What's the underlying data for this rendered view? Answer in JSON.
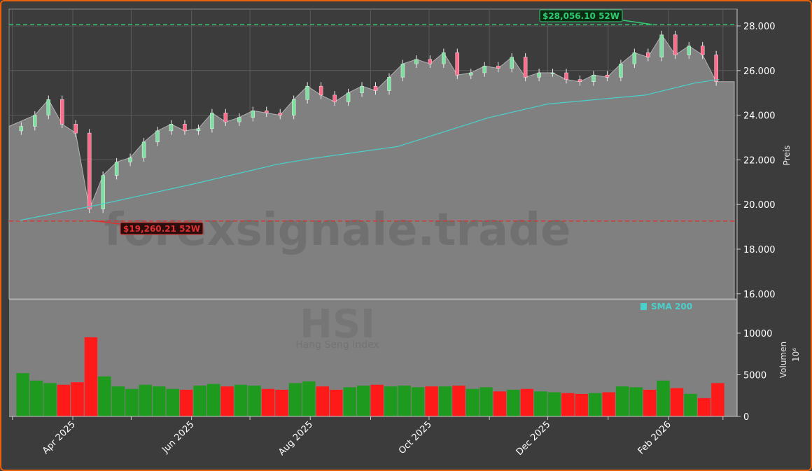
{
  "chart_data": {
    "type": "candlestick-area",
    "symbol": "HSI",
    "symbol_name": "Hang Seng Index",
    "watermark": "forexsignale.trade",
    "ylabel": "Preis",
    "ylim": [
      16000,
      28700
    ],
    "yticks": [
      16000,
      18000,
      20000,
      22000,
      24000,
      26000,
      28000
    ],
    "ytick_labels": [
      "16.000",
      "18.000",
      "20.000",
      "22.000",
      "24.000",
      "26.000",
      "28.000"
    ],
    "volume_label": "Volumen",
    "volume_unit": "10⁶",
    "volume_ylim": [
      0,
      13500
    ],
    "volume_ticks": [
      0,
      5000,
      10000
    ],
    "volume_tick_labels": [
      "0",
      "5000",
      "10000"
    ],
    "xtick_labels": [
      {
        "date": "2025-04-01",
        "label": "Apr 2025"
      },
      {
        "date": "2025-06-01",
        "label": "Jun 2025"
      },
      {
        "date": "2025-08-01",
        "label": "Aug 2025"
      },
      {
        "date": "2025-10-01",
        "label": "Oct 2025"
      },
      {
        "date": "2025-12-01",
        "label": "Dec 2025"
      },
      {
        "date": "2026-02-01",
        "label": "Feb 2026"
      }
    ],
    "minor_xticks": [
      "2025-03-01",
      "2025-05-01",
      "2025-07-01",
      "2025-09-01",
      "2025-11-01",
      "2026-01-01",
      "2026-03-01"
    ],
    "legend": {
      "label": "SMA 200",
      "placement": "upper-right of volume panel"
    },
    "high_52w": {
      "value": 28056.1,
      "label": "$28,056.10 52W",
      "date": "2026-01-28",
      "color": "#2ecc71"
    },
    "low_52w": {
      "value": 19260.21,
      "label": "$19,260.21 52W",
      "date": "2025-04-08",
      "color": "#e03030"
    },
    "weekly": {
      "dates": [
        "2025-03-03",
        "2025-03-10",
        "2025-03-17",
        "2025-03-24",
        "2025-03-31",
        "2025-04-07",
        "2025-04-14",
        "2025-04-21",
        "2025-04-28",
        "2025-05-05",
        "2025-05-12",
        "2025-05-19",
        "2025-05-26",
        "2025-06-02",
        "2025-06-09",
        "2025-06-16",
        "2025-06-23",
        "2025-06-30",
        "2025-07-07",
        "2025-07-14",
        "2025-07-21",
        "2025-07-28",
        "2025-08-04",
        "2025-08-11",
        "2025-08-18",
        "2025-08-25",
        "2025-09-01",
        "2025-09-08",
        "2025-09-15",
        "2025-09-22",
        "2025-09-29",
        "2025-10-06",
        "2025-10-13",
        "2025-10-20",
        "2025-10-27",
        "2025-11-03",
        "2025-11-10",
        "2025-11-17",
        "2025-11-24",
        "2025-12-01",
        "2025-12-08",
        "2025-12-15",
        "2025-12-22",
        "2025-12-29",
        "2026-01-05",
        "2026-01-12",
        "2026-01-19",
        "2026-01-26",
        "2026-02-02",
        "2026-02-09",
        "2026-02-16",
        "2026-02-23"
      ],
      "close": [
        23500,
        24000,
        24700,
        23600,
        23200,
        19800,
        21300,
        21900,
        22100,
        22800,
        23300,
        23600,
        23300,
        23400,
        24100,
        23700,
        23900,
        24200,
        24100,
        24000,
        24700,
        25300,
        24900,
        24600,
        25000,
        25300,
        25100,
        25700,
        26300,
        26500,
        26300,
        26800,
        25800,
        25900,
        26200,
        26100,
        26600,
        25700,
        25900,
        25900,
        25600,
        25500,
        25800,
        25700,
        26300,
        26800,
        26600,
        27600,
        26700,
        27100,
        26700,
        25500
      ],
      "volume": [
        5200,
        4300,
        4000,
        3800,
        4100,
        9500,
        4800,
        3600,
        3300,
        3800,
        3600,
        3300,
        3200,
        3700,
        3900,
        3600,
        3800,
        3700,
        3300,
        3200,
        4000,
        4200,
        3600,
        3200,
        3500,
        3700,
        3800,
        3600,
        3700,
        3500,
        3600,
        3600,
        3700,
        3300,
        3500,
        3000,
        3200,
        3300,
        3000,
        2900,
        2800,
        2700,
        2800,
        2900,
        3600,
        3500,
        3200,
        4300,
        3400,
        2700,
        2200,
        4000
      ]
    },
    "sma200": {
      "dates": [
        "2025-03-03",
        "2025-04-15",
        "2025-06-01",
        "2025-07-15",
        "2025-08-01",
        "2025-09-15",
        "2025-11-01",
        "2025-12-01",
        "2026-01-01",
        "2026-01-20",
        "2026-02-15",
        "2026-02-27"
      ],
      "values": [
        19260,
        20000,
        20900,
        21800,
        22050,
        22600,
        23900,
        24500,
        24750,
        24900,
        25450,
        25600
      ]
    },
    "colors": {
      "up": "#1e9a1e",
      "down": "#ff1a1a",
      "candle_up": "#7ee0a0",
      "candle_down": "#ff6b8a",
      "sma": "#48d1cc",
      "area": "#808080",
      "background": "#3c3c3c",
      "frame": "#e8620c"
    }
  }
}
